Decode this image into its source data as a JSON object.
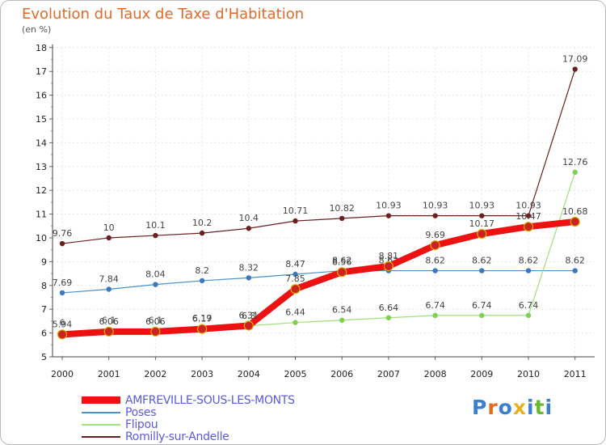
{
  "title": "Evolution du Taux de Taxe d'Habitation",
  "subtitle": "(en %)",
  "logo": {
    "text": "Proxiti",
    "colors": [
      "#3a7fd0",
      "#e86a1c",
      "#3a7fd0",
      "#e8b020",
      "#3a7fd0",
      "#6ab832",
      "#3a7fd0"
    ]
  },
  "chart_data": {
    "type": "line",
    "title": "Evolution du Taux de Taxe d'Habitation",
    "ylabel": "(en %)",
    "x": [
      2000,
      2001,
      2002,
      2003,
      2004,
      2005,
      2006,
      2007,
      2008,
      2009,
      2010,
      2011
    ],
    "ylim": [
      5,
      18
    ],
    "yticks": [
      5,
      6,
      7,
      8,
      9,
      10,
      11,
      12,
      13,
      14,
      15,
      16,
      17,
      18
    ],
    "grid": true,
    "legend_position": "bottom-left",
    "series": [
      {
        "name": "Romilly-sur-Andelle",
        "color": "#6b2020",
        "marker": "#6b2020",
        "width": 1.2,
        "values": [
          9.76,
          10,
          10.1,
          10.2,
          10.4,
          10.71,
          10.82,
          10.93,
          10.93,
          10.93,
          10.93,
          17.09
        ],
        "labels": [
          "9.76",
          "10",
          "10.1",
          "10.2",
          "10.4",
          "10.71",
          "10.82",
          "10.93",
          "10.93",
          "10.93",
          "10.93",
          "17.09"
        ]
      },
      {
        "name": "Poses",
        "color": "#4a90cc",
        "marker": "#3a78c0",
        "width": 1.2,
        "values": [
          7.69,
          7.84,
          8.04,
          8.2,
          8.32,
          8.47,
          8.62,
          8.62,
          8.62,
          8.62,
          8.62,
          8.62
        ],
        "labels": [
          "7.69",
          "7.84",
          "8.04",
          "8.2",
          "8.32",
          "8.47",
          "8.62",
          "8.62",
          "8.62",
          "8.62",
          "8.62",
          "8.62"
        ]
      },
      {
        "name": "Flipou",
        "color": "#9ee07a",
        "marker": "#80d050",
        "width": 1.2,
        "values": [
          6,
          6.1,
          6.1,
          6.19,
          6.3,
          6.44,
          6.54,
          6.64,
          6.74,
          6.74,
          6.74,
          12.76
        ],
        "labels": [
          "6",
          "6.1",
          "6.1",
          "6.19",
          "6.3",
          "6.44",
          "6.54",
          "6.64",
          "6.74",
          "6.74",
          "6.74",
          "12.76"
        ]
      },
      {
        "name": "AMFREVILLE-SOUS-LES-MONTS",
        "color": "#ee1111",
        "marker": "#cc2222",
        "width": 8,
        "values": [
          5.94,
          6.06,
          6.06,
          6.17,
          6.31,
          7.85,
          8.56,
          8.81,
          9.69,
          10.17,
          10.47,
          10.68
        ],
        "labels": [
          "5.94",
          "6.06",
          "6.06",
          "6.17",
          "6.31",
          "7.85",
          "8.56",
          "8.81",
          "9.69",
          "10.17",
          "10.47",
          "10.68"
        ]
      }
    ],
    "legend_order": [
      "AMFREVILLE-SOUS-LES-MONTS",
      "Poses",
      "Flipou",
      "Romilly-sur-Andelle"
    ]
  }
}
